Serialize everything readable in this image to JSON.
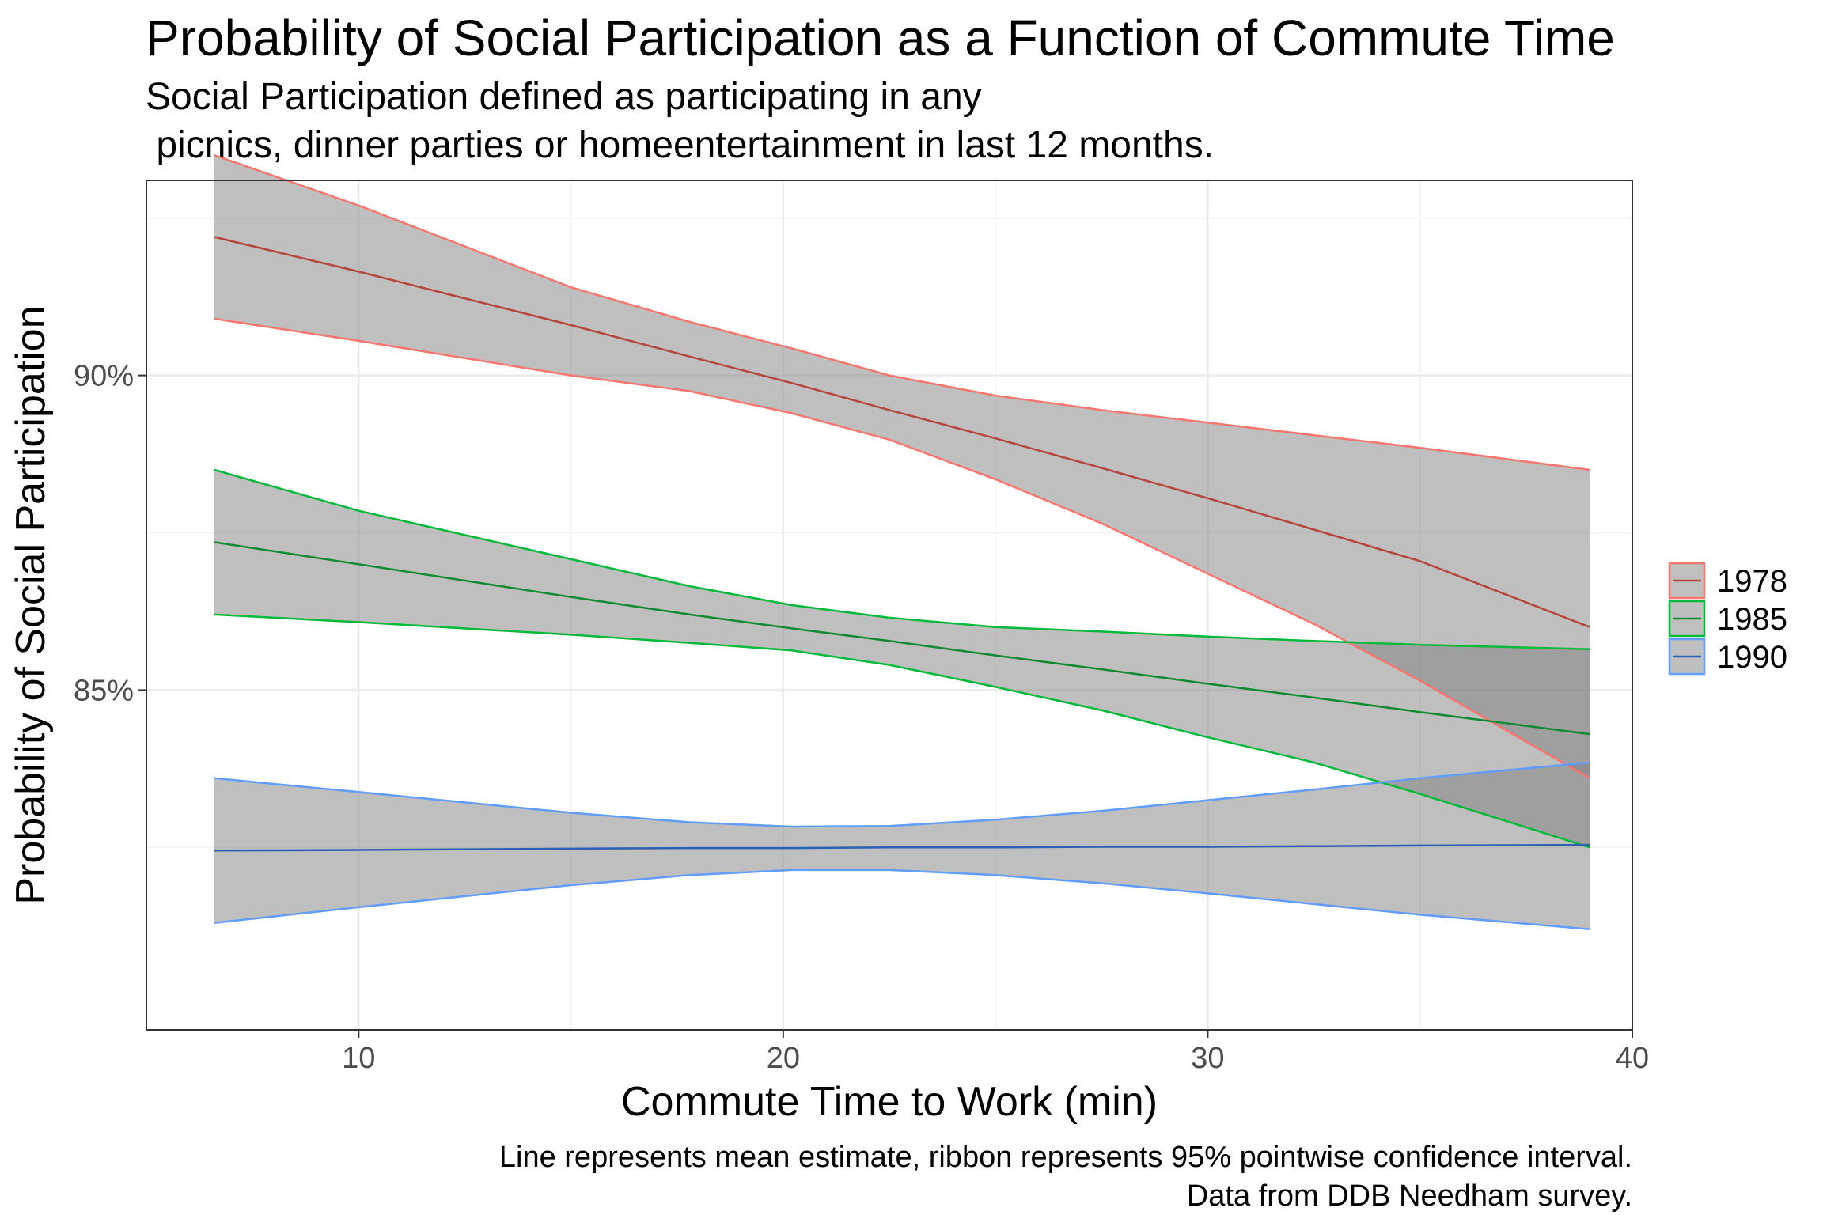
{
  "chart_data": {
    "type": "area",
    "title": "Probability of Social Participation as a Function of Commute Time",
    "subtitle_lines": [
      "Social Participation defined as participating in any",
      " picnics, dinner parties or homeentertainment in last 12 months."
    ],
    "xlabel": "Commute Time to Work (min)",
    "ylabel": "Probability of Social Participation",
    "caption_lines": [
      "Line represents mean estimate, ribbon represents 95% pointwise confidence interval.",
      "Data from DDB Needham survey."
    ],
    "xlim": [
      5,
      40
    ],
    "ylim": [
      0.796,
      0.931
    ],
    "x_ticks": [
      10,
      20,
      30,
      40
    ],
    "x_tick_labels": [
      "10",
      "20",
      "30",
      "40"
    ],
    "y_ticks": [
      0.85,
      0.9
    ],
    "y_tick_labels": [
      "85%",
      "90%"
    ],
    "grid": true,
    "legend_position": "right",
    "ribbon_fill": "#7f7f7f",
    "series": [
      {
        "name": "1978",
        "color": "#F8766D",
        "line_color": "#B5463E",
        "x": [
          6.6,
          10,
          15,
          17.8,
          20.2,
          22.5,
          25,
          27.5,
          30,
          32.5,
          35,
          39
        ],
        "mean": [
          0.922,
          0.9165,
          0.908,
          0.903,
          0.8988,
          0.8945,
          0.89,
          0.8853,
          0.8805,
          0.8755,
          0.8705,
          0.86
        ],
        "upper": [
          0.935,
          0.927,
          0.914,
          0.9085,
          0.9043,
          0.9,
          0.8968,
          0.8945,
          0.8925,
          0.8905,
          0.8885,
          0.885
        ],
        "lower": [
          0.909,
          0.9055,
          0.9,
          0.8975,
          0.894,
          0.8898,
          0.8835,
          0.8765,
          0.8685,
          0.8605,
          0.8515,
          0.836
        ]
      },
      {
        "name": "1985",
        "color": "#00BA38",
        "line_color": "#108A31",
        "x": [
          6.6,
          10,
          15,
          17.8,
          20.2,
          22.5,
          25,
          27.5,
          30,
          32.5,
          35,
          39
        ],
        "mean": [
          0.8735,
          0.87,
          0.8648,
          0.862,
          0.8598,
          0.8578,
          0.8555,
          0.8533,
          0.851,
          0.8488,
          0.8465,
          0.843
        ],
        "upper": [
          0.885,
          0.8785,
          0.8708,
          0.8665,
          0.8635,
          0.8615,
          0.86,
          0.8593,
          0.8585,
          0.8578,
          0.8572,
          0.8565
        ],
        "lower": [
          0.862,
          0.8608,
          0.8588,
          0.8575,
          0.8563,
          0.854,
          0.8505,
          0.8468,
          0.8425,
          0.8385,
          0.8335,
          0.825
        ]
      },
      {
        "name": "1990",
        "color": "#619CFF",
        "line_color": "#2E5FB3",
        "x": [
          6.6,
          10,
          15,
          17.8,
          20.2,
          22.5,
          25,
          27.5,
          30,
          32.5,
          35,
          39
        ],
        "mean": [
          0.8245,
          0.8246,
          0.8248,
          0.8249,
          0.8249,
          0.825,
          0.825,
          0.8251,
          0.8251,
          0.8252,
          0.8253,
          0.8254
        ],
        "upper": [
          0.836,
          0.8338,
          0.8305,
          0.829,
          0.8283,
          0.8284,
          0.8294,
          0.8308,
          0.8325,
          0.8342,
          0.836,
          0.8385
        ],
        "lower": [
          0.813,
          0.8155,
          0.819,
          0.8206,
          0.8214,
          0.8214,
          0.8206,
          0.8193,
          0.8177,
          0.816,
          0.8143,
          0.812
        ]
      }
    ]
  }
}
